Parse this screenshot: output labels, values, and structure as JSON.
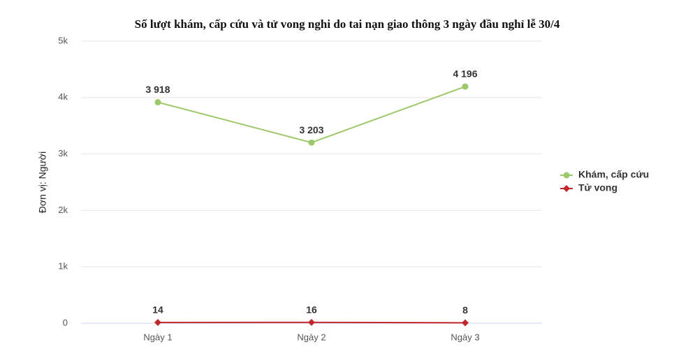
{
  "chart_data": {
    "type": "line",
    "title": "Số lượt khám, cấp cứu và tử vong nghi do tai nạn giao thông 3 ngày đầu nghỉ lễ 30/4",
    "ylabel": "Đơn vị: Người",
    "categories": [
      "Ngày 1",
      "Ngày 2",
      "Ngày 3"
    ],
    "series": [
      {
        "name": "Khám, cấp cứu",
        "color": "#9dc86a",
        "marker": "circle",
        "values": [
          3918,
          3203,
          4196
        ],
        "value_labels": [
          "3 918",
          "3 203",
          "4 196"
        ]
      },
      {
        "name": "Tử vong",
        "color": "#c0282d",
        "marker": "diamond",
        "values": [
          14,
          16,
          8
        ]
      }
    ],
    "ylim": [
      0,
      5000
    ],
    "yticks": [
      0,
      {
        "value": 1000,
        "label": "1k"
      },
      {
        "value": 2000,
        "label": "2k"
      },
      {
        "value": 3000,
        "label": "3k"
      },
      {
        "value": 4000,
        "label": "4k"
      },
      {
        "value": 5000,
        "label": "5k"
      }
    ],
    "grid": true,
    "legend": "right"
  }
}
